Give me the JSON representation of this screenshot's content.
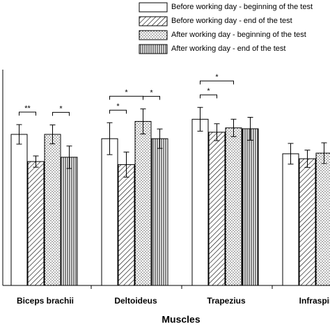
{
  "chart_data": {
    "type": "bar",
    "x_label": "Muscles",
    "categories": [
      "Biceps brachii",
      "Deltoideus",
      "Trapezius",
      "Infraspin"
    ],
    "series": [
      {
        "name": "Before working day - beginning of the test",
        "pattern": "none",
        "color": "#000000",
        "values": [
          70,
          68,
          77,
          61
        ],
        "errors": [
          4.5,
          7.4,
          5.5,
          4.8
        ]
      },
      {
        "name": "Before working day - end of the test",
        "pattern": "diagonal",
        "color": "#000000",
        "values": [
          57.4,
          56,
          71,
          58.7
        ],
        "errors": [
          2.6,
          5.8,
          3.9,
          4
        ]
      },
      {
        "name": "After working day - beginning of the test",
        "pattern": "dots",
        "color": "#000000",
        "values": [
          70,
          76,
          73,
          61.3
        ],
        "errors": [
          4.4,
          5.8,
          4,
          4.8
        ]
      },
      {
        "name": "After working day - end of the test",
        "pattern": "vertical",
        "color": "#000000",
        "values": [
          59.4,
          68,
          72.6,
          null
        ],
        "errors": [
          5.2,
          4.5,
          5.3,
          null
        ]
      }
    ],
    "annotations": [
      {
        "text": "**",
        "category": 0,
        "from": 0,
        "to": 1
      },
      {
        "text": "*",
        "category": 0,
        "from": 2,
        "to": 3
      },
      {
        "text": "*",
        "category": 1,
        "from": 0,
        "to": 1
      },
      {
        "text": "*",
        "category": 1,
        "from": 0,
        "to": 2
      },
      {
        "text": "*",
        "category": 1,
        "from": 2,
        "to": 3
      },
      {
        "text": "*",
        "category": 2,
        "from": 0,
        "to": 1
      },
      {
        "text": "*",
        "category": 2,
        "from": 0,
        "to": 2
      }
    ],
    "ylim": [
      0,
      100
    ]
  }
}
